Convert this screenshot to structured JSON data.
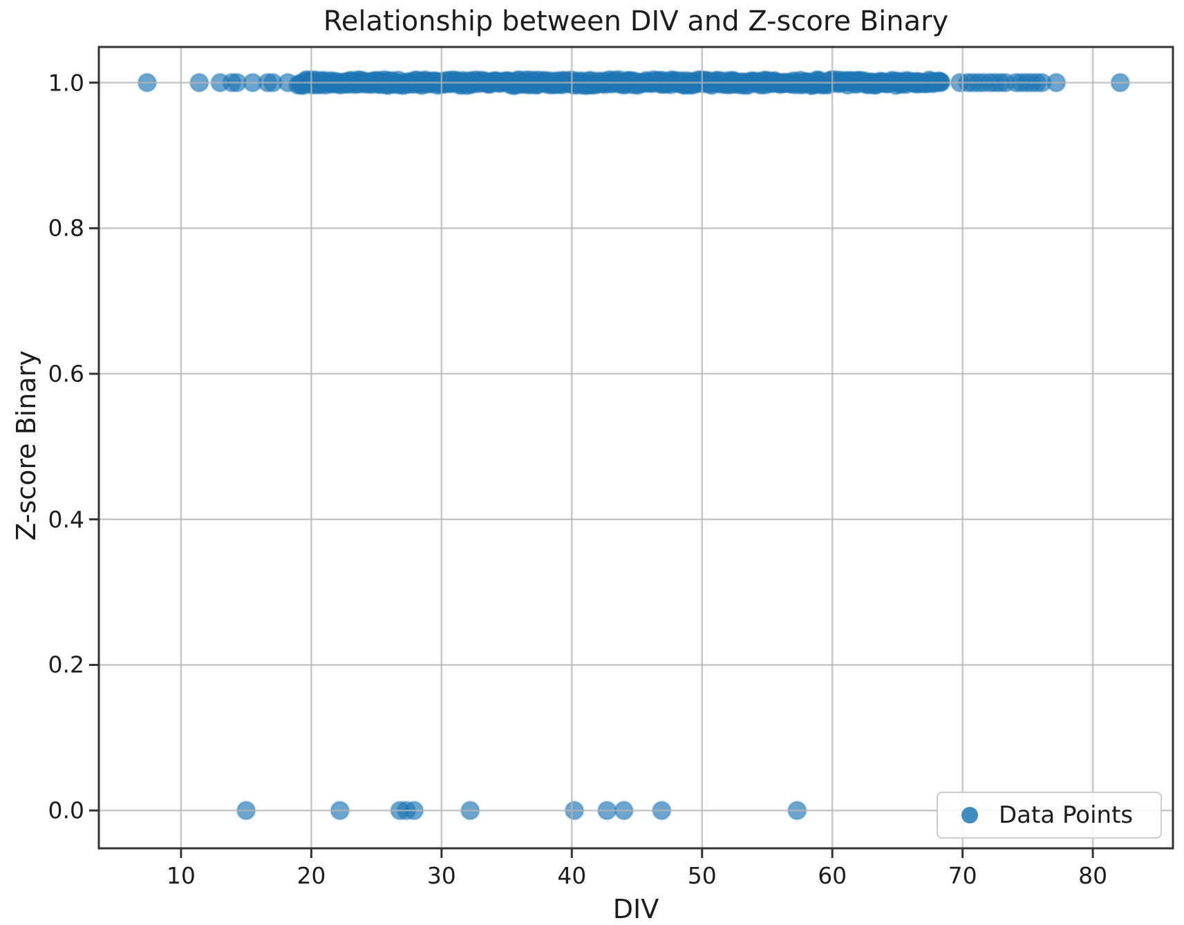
{
  "chart_data": {
    "type": "scatter",
    "title": "Relationship between DIV and Z-score Binary",
    "xlabel": "DIV",
    "ylabel": "Z-score Binary",
    "x_tick_values": [
      10,
      20,
      30,
      40,
      50,
      60,
      70,
      80
    ],
    "x_tick_labels": [
      "10",
      "20",
      "30",
      "40",
      "50",
      "60",
      "70",
      "80"
    ],
    "y_tick_values": [
      0.0,
      0.2,
      0.4,
      0.6,
      0.8,
      1.0
    ],
    "y_tick_labels": [
      "0.0",
      "0.2",
      "0.4",
      "0.6",
      "0.8",
      "1.0"
    ],
    "xlim": [
      3.69,
      86.15
    ],
    "ylim": [
      -0.052,
      1.049
    ],
    "grid": true,
    "legend": {
      "label": "Data Points",
      "position": "lower right"
    },
    "colors": {
      "marker": "#1f77b4",
      "grid": "#b4b4b4",
      "spine": "#333333",
      "text": "#1c1c1c",
      "legend_border": "#cccccc"
    },
    "marker_alpha": 0.66,
    "marker_radius_px": 13,
    "series": [
      {
        "name": "Data Points",
        "y0_points_x": [
          15.0,
          22.2,
          26.8,
          27.3,
          27.9,
          32.2,
          40.2,
          42.7,
          44.0,
          46.9,
          57.3
        ],
        "y1_sparse_x": [
          7.4,
          11.4,
          13.0,
          13.9,
          14.3,
          15.5,
          16.65,
          17.05,
          18.2,
          69.8,
          70.4,
          70.8,
          71.2,
          71.6,
          72.1,
          72.5,
          72.9,
          73.3,
          74.1,
          74.5,
          74.9,
          75.3,
          75.7,
          76.1,
          77.2,
          82.1
        ],
        "y1_dense_range": [
          19.0,
          68.35
        ],
        "y1_dense_step": 0.15
      }
    ]
  }
}
